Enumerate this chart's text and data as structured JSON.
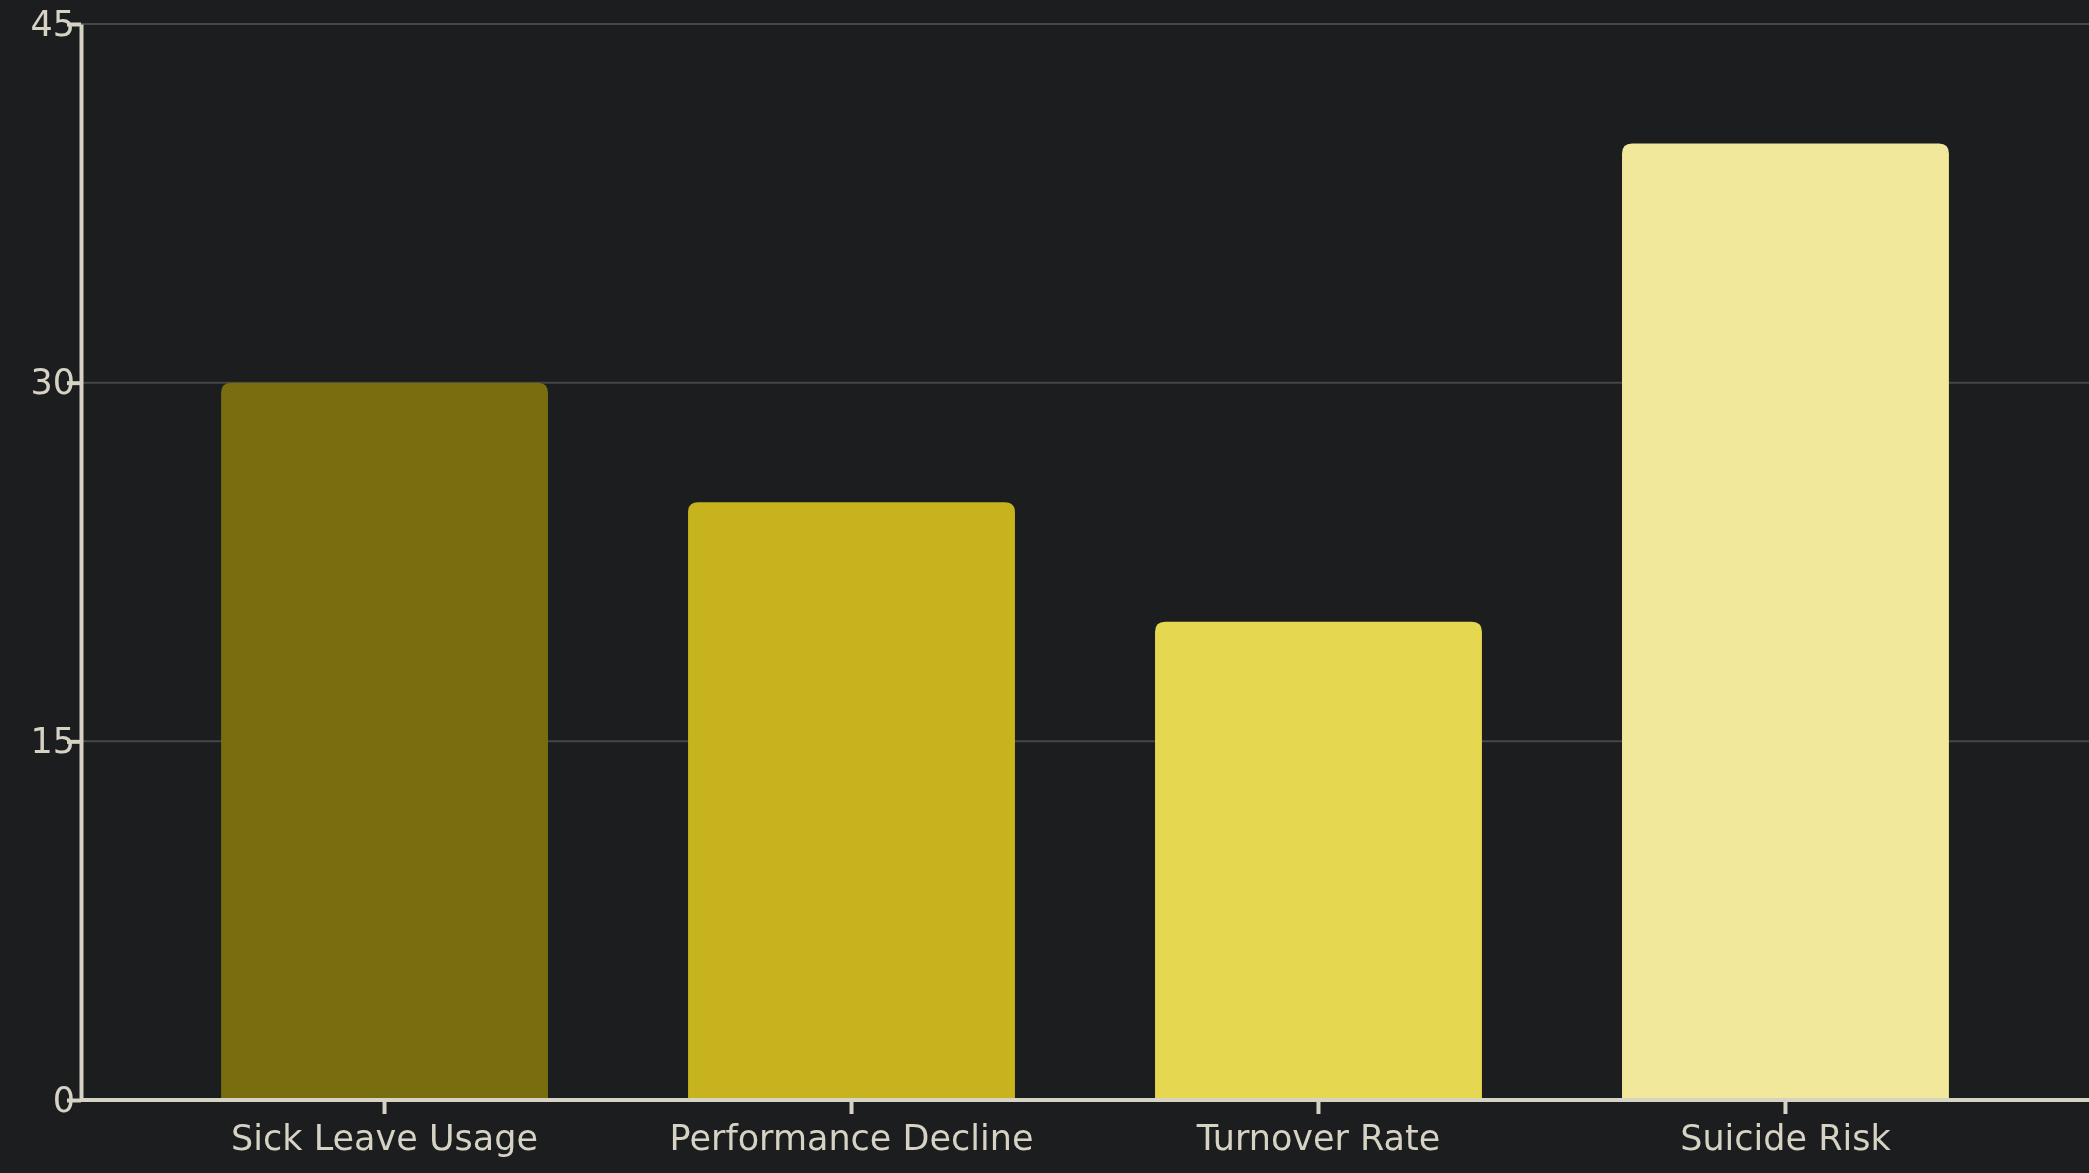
{
  "chart_data": {
    "type": "bar",
    "categories": [
      "Sick Leave Usage",
      "Performance Decline",
      "Turnover Rate",
      "Suicide Risk"
    ],
    "values": [
      30,
      25,
      20,
      40
    ],
    "colors": [
      "#786e10",
      "#c7b31e",
      "#e6d750",
      "#f1e89b"
    ],
    "ylim": [
      0,
      45
    ],
    "yticks": [
      0,
      15,
      30,
      45
    ],
    "grid": "y"
  }
}
